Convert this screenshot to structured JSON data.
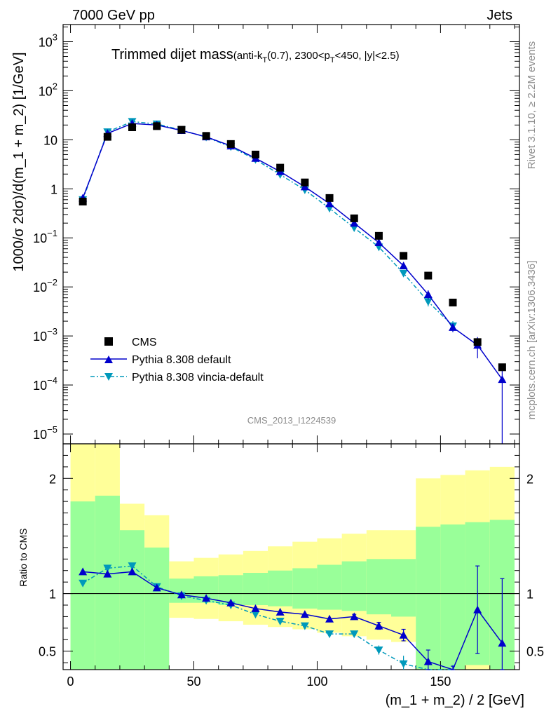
{
  "header": {
    "left": "7000 GeV pp",
    "right": "Jets"
  },
  "chart_data": {
    "type": "scatter",
    "title": "Trimmed dijet mass",
    "title_detail": {
      "prefix": "(anti-k",
      "sub1": "T",
      "mid1": "(0.7), 2300<p",
      "sub2": "T",
      "suffix": "<450, |y|<2.5)"
    },
    "ylabel": "1000/σ 2dσ)/d(m_1 + m_2) [1/GeV]",
    "xlabel": "(m_1 + m_2) / 2 [GeV]",
    "ratio_ylabel": "Ratio to CMS",
    "side_label_top": "Rivet 3.1.10, ≥ 2.2M events",
    "side_label_bottom": "mcplots.cern.ch [arXiv:1306.3436]",
    "watermark": "CMS_2013_I1224539",
    "xlim": [
      -3,
      182
    ],
    "ylim_main_log10": [
      -5.2,
      3.35
    ],
    "ylim_ratio": [
      0.34,
      2.3
    ],
    "y_scale": "log",
    "x_ticks": [
      0,
      50,
      100,
      150
    ],
    "y_ticks_main": [
      {
        "base": "10",
        "exp": "3",
        "value": 1000
      },
      {
        "base": "10",
        "exp": "2",
        "value": 100
      },
      {
        "base": "10",
        "exp": "",
        "value": 10
      },
      {
        "base": "1",
        "exp": "",
        "value": 1
      },
      {
        "base": "10",
        "exp": "−1",
        "value": 0.1
      },
      {
        "base": "10",
        "exp": "−2",
        "value": 0.01
      },
      {
        "base": "10",
        "exp": "−3",
        "value": 0.001
      },
      {
        "base": "10",
        "exp": "−4",
        "value": 0.0001
      },
      {
        "base": "10",
        "exp": "−5",
        "value": 1e-05
      }
    ],
    "y_ticks_ratio": [
      {
        "label": "2",
        "value": 2
      },
      {
        "label": "1",
        "value": 1
      },
      {
        "label": "0.5",
        "value": 0.5
      }
    ],
    "legend_placement": "bottom-left",
    "legend": [
      {
        "label": "CMS",
        "marker": "square",
        "color": "#000000"
      },
      {
        "label": "Pythia 8.308 default",
        "marker": "triangle-up",
        "color": "#0000cc"
      },
      {
        "label": "Pythia 8.308 vincia-default",
        "marker": "triangle-down",
        "color": "#0099bb"
      }
    ],
    "colors": {
      "data": "#000000",
      "default": "#0000cc",
      "vincia": "#0099bb",
      "band_inner": "#99ff99",
      "band_outer": "#ffff99"
    },
    "x": [
      5,
      15,
      25,
      35,
      45,
      55,
      65,
      75,
      85,
      95,
      105,
      115,
      125,
      135,
      145,
      155,
      165,
      175
    ],
    "bin_edges": [
      0,
      10,
      20,
      30,
      40,
      50,
      60,
      70,
      80,
      90,
      100,
      110,
      120,
      130,
      140,
      150,
      160,
      170,
      180
    ],
    "series": [
      {
        "name": "CMS",
        "values": [
          0.55,
          11.5,
          18,
          19,
          16,
          12,
          8.2,
          5.0,
          2.7,
          1.35,
          0.65,
          0.25,
          0.11,
          0.043,
          0.017,
          0.0048,
          0.00075,
          0.00023
        ]
      },
      {
        "name": "Pythia 8.308 default",
        "values": [
          0.65,
          13.5,
          21.5,
          20,
          15.5,
          11.5,
          7.5,
          4.2,
          2.25,
          1.1,
          0.5,
          0.2,
          0.08,
          0.027,
          0.007,
          0.0015,
          0.00065,
          0.00013
        ],
        "errors": [
          0,
          0,
          0,
          0,
          0,
          0,
          0,
          0,
          0,
          0,
          0,
          0,
          0,
          0,
          0.0015,
          0.0003,
          0.0003,
          0.00013
        ]
      },
      {
        "name": "Pythia 8.308 vincia-default",
        "values": [
          0.6,
          14.5,
          23.5,
          21,
          15.8,
          11.3,
          7.2,
          3.95,
          1.95,
          0.95,
          0.4,
          0.16,
          0.065,
          0.019,
          0.005,
          0.0016
        ],
        "errors": [
          0,
          0,
          0,
          0,
          0,
          0,
          0,
          0,
          0,
          0,
          0,
          0,
          0,
          0.002,
          0.001,
          0.0004
        ]
      }
    ],
    "ratio": {
      "default": [
        1.19,
        1.17,
        1.19,
        1.05,
        0.99,
        0.96,
        0.92,
        0.87,
        0.84,
        0.82,
        0.78,
        0.8,
        0.72,
        0.64,
        0.41,
        0.31,
        0.86,
        0.57
      ],
      "default_err": [
        0,
        0,
        0,
        0,
        0,
        0,
        0,
        0,
        0,
        0,
        0,
        0.02,
        0.03,
        0.05,
        0.1,
        0.06,
        0.38,
        0.56
      ],
      "vincia": [
        1.09,
        1.22,
        1.24,
        1.06,
        0.98,
        0.94,
        0.9,
        0.82,
        0.76,
        0.72,
        0.65,
        0.65,
        0.51,
        0.39,
        0.28,
        0.3
      ],
      "vincia_err": [
        0,
        0,
        0,
        0,
        0,
        0,
        0,
        0,
        0,
        0,
        0,
        0.02,
        0.04,
        0.07,
        0.08,
        0.08
      ],
      "band_inner_lo": [
        0.1,
        0.1,
        0.1,
        0.1,
        0.92,
        0.92,
        0.9,
        0.9,
        0.89,
        0.87,
        0.86,
        0.85,
        0.82,
        0.8,
        0.33,
        0.33,
        0.38,
        0.33
      ],
      "band_inner_hi": [
        1.8,
        1.85,
        1.55,
        1.4,
        1.13,
        1.15,
        1.16,
        1.18,
        1.2,
        1.22,
        1.25,
        1.28,
        1.3,
        1.3,
        1.58,
        1.6,
        1.62,
        1.64
      ],
      "band_outer_lo": [
        0.1,
        0.1,
        0.58,
        0.71,
        0.79,
        0.78,
        0.76,
        0.73,
        0.71,
        0.69,
        0.66,
        0.63,
        0.6,
        0.58,
        0.1,
        0.1,
        0.1,
        0.1
      ],
      "band_outer_hi": [
        2.35,
        2.35,
        1.78,
        1.68,
        1.28,
        1.31,
        1.34,
        1.37,
        1.41,
        1.45,
        1.48,
        1.52,
        1.55,
        1.55,
        2.0,
        2.03,
        2.07,
        2.1
      ]
    }
  }
}
